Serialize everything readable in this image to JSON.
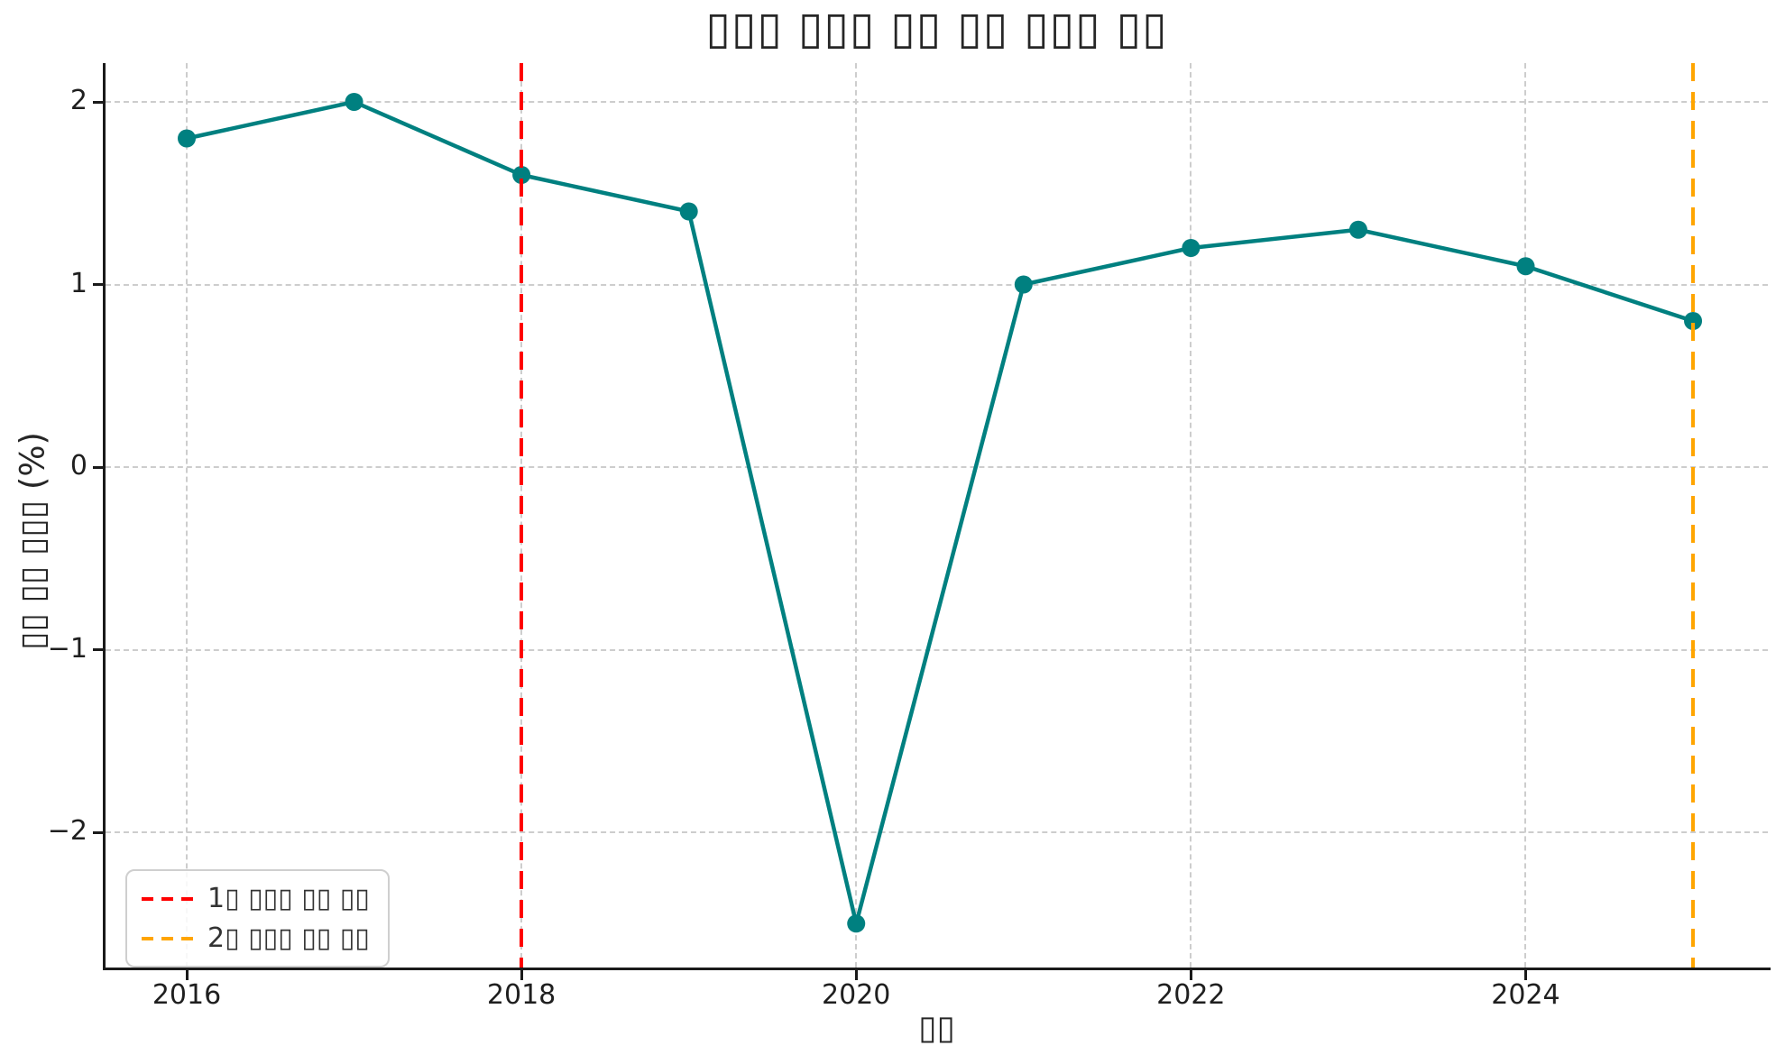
{
  "colors": {
    "background": "#ffffff",
    "grid": "#cdcdcd",
    "spine": "#1a1a1a",
    "text": "#262626",
    "series_teal": "#008080",
    "vline1_red": "#ff0000",
    "vline2_orange": "#ffa500"
  },
  "chart_data": {
    "type": "line",
    "title": "▯▯▯ ▯▯▯ ▯▯ ▯▯ ▯▯▯ ▯▯",
    "xlabel": "▯▯",
    "ylabel": "▯▯ ▯▯ ▯▯▯ (%)",
    "x": [
      2016,
      2017,
      2018,
      2019,
      2020,
      2021,
      2022,
      2023,
      2024,
      2025
    ],
    "series": [
      {
        "name": "annual-rate-line",
        "color": "#008080",
        "marker": "circle",
        "values": [
          1.8,
          2.0,
          1.6,
          1.4,
          -2.5,
          1.0,
          1.2,
          1.3,
          1.1,
          0.8
        ]
      }
    ],
    "xtick_labels": [
      "2016",
      "2018",
      "2020",
      "2022",
      "2024"
    ],
    "xtick_values": [
      2016,
      2018,
      2020,
      2022,
      2024
    ],
    "ytick_labels": [
      "2",
      "1",
      "0",
      "−1",
      "−2"
    ],
    "ytick_values": [
      2,
      1,
      0,
      -1,
      -2
    ],
    "xlim": [
      2015.55,
      2025.45
    ],
    "ylim": [
      -2.74,
      2.21
    ],
    "grid": true,
    "legend_position": "lower left",
    "vlines": [
      {
        "x": 2018,
        "color": "#ff0000",
        "style": "dashed",
        "label": "1▯ ▯▯▯ ▯▯ ▯▯"
      },
      {
        "x": 2025,
        "color": "#ffa500",
        "style": "dashed",
        "label": "2▯ ▯▯▯ ▯▯ ▯▯"
      }
    ]
  }
}
